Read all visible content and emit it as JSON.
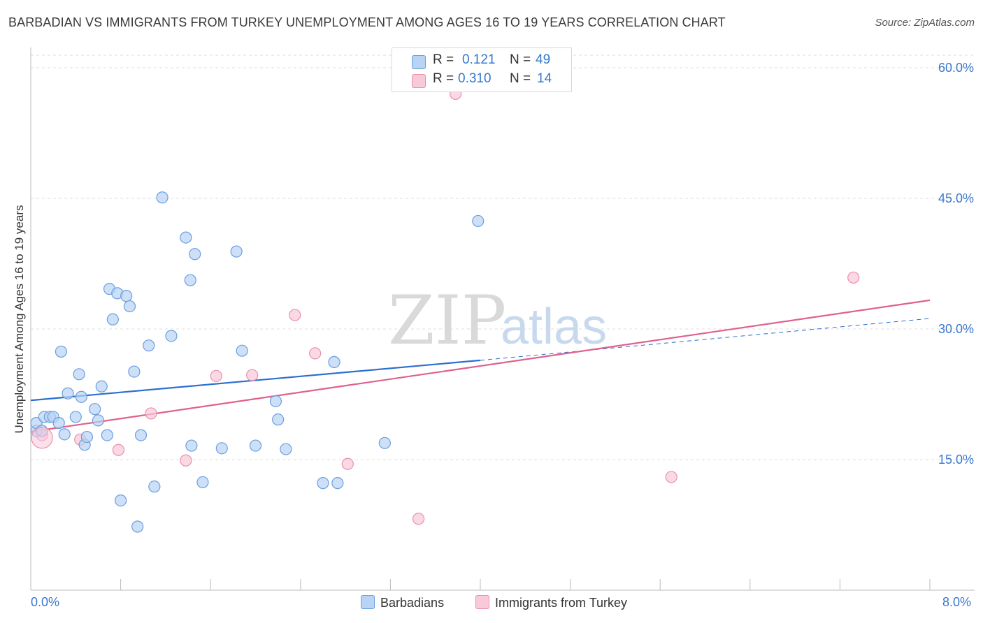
{
  "header": {
    "title": "BARBADIAN VS IMMIGRANTS FROM TURKEY UNEMPLOYMENT AMONG AGES 16 TO 19 YEARS CORRELATION CHART",
    "source": "Source: ZipAtlas.com"
  },
  "watermark": {
    "zip": "ZIP",
    "atlas": "atlas"
  },
  "legend": {
    "rows": [
      {
        "r_label": "R =",
        "r_value": "0.121",
        "n_label": "N =",
        "n_value": "49",
        "color": "#aac8f0",
        "border": "#6a9fe0"
      },
      {
        "r_label": "R =",
        "r_value": "0.310",
        "n_label": "N =",
        "n_value": "14",
        "color": "#f8c4d4",
        "border": "#e890ac"
      }
    ]
  },
  "bottom_legend": {
    "items": [
      {
        "label": "Barbadians",
        "color": "#aac8f0",
        "border": "#6a9fe0"
      },
      {
        "label": "Immigrants from Turkey",
        "color": "#f8c4d4",
        "border": "#e890ac"
      }
    ]
  },
  "chart_data": {
    "type": "scatter",
    "title": "BARBADIAN VS IMMIGRANTS FROM TURKEY UNEMPLOYMENT AMONG AGES 16 TO 19 YEARS CORRELATION CHART",
    "xlabel": "",
    "ylabel": "Unemployment Among Ages 16 to 19 years",
    "xlim": [
      0,
      8
    ],
    "ylim": [
      0,
      60
    ],
    "x_tick_labels": [
      "0.0%",
      "8.0%"
    ],
    "y_ticks": [
      15,
      30,
      45,
      60
    ],
    "y_tick_labels": [
      "15.0%",
      "30.0%",
      "45.0%",
      "60.0%"
    ],
    "grid": true,
    "series": [
      {
        "name": "Barbadians",
        "color": "#6a9fe0",
        "fill": "#b8d3f3",
        "trend": {
          "x0": 0.0,
          "y0": 21.8,
          "x1": 4.0,
          "y1": 26.4,
          "dash_to_x": 8.0,
          "dash_to_y": 31.2,
          "color": "#2b6fd0"
        },
        "points": [
          [
            0.05,
            18.3
          ],
          [
            0.05,
            19.2
          ],
          [
            0.1,
            18.3
          ],
          [
            0.12,
            19.9
          ],
          [
            0.17,
            19.9
          ],
          [
            0.2,
            19.9
          ],
          [
            0.25,
            19.2
          ],
          [
            0.27,
            27.4
          ],
          [
            0.3,
            17.9
          ],
          [
            0.33,
            22.6
          ],
          [
            0.4,
            19.9
          ],
          [
            0.43,
            24.8
          ],
          [
            0.45,
            22.2
          ],
          [
            0.48,
            16.7
          ],
          [
            0.5,
            17.6
          ],
          [
            0.57,
            20.8
          ],
          [
            0.6,
            19.5
          ],
          [
            0.63,
            23.4
          ],
          [
            0.68,
            17.8
          ],
          [
            0.7,
            34.6
          ],
          [
            0.73,
            31.1
          ],
          [
            0.77,
            34.1
          ],
          [
            0.8,
            10.3
          ],
          [
            0.85,
            33.8
          ],
          [
            0.88,
            32.6
          ],
          [
            0.92,
            25.1
          ],
          [
            0.95,
            7.3
          ],
          [
            0.98,
            17.8
          ],
          [
            1.05,
            28.1
          ],
          [
            1.1,
            11.9
          ],
          [
            1.17,
            45.1
          ],
          [
            1.25,
            29.2
          ],
          [
            1.38,
            40.5
          ],
          [
            1.42,
            35.6
          ],
          [
            1.43,
            16.6
          ],
          [
            1.46,
            38.6
          ],
          [
            1.53,
            12.4
          ],
          [
            1.7,
            16.3
          ],
          [
            1.83,
            38.9
          ],
          [
            1.88,
            27.5
          ],
          [
            2.0,
            16.6
          ],
          [
            2.18,
            21.7
          ],
          [
            2.2,
            19.6
          ],
          [
            2.27,
            16.2
          ],
          [
            2.6,
            12.3
          ],
          [
            2.7,
            26.2
          ],
          [
            2.73,
            12.3
          ],
          [
            3.15,
            16.9
          ],
          [
            3.98,
            42.4
          ]
        ]
      },
      {
        "name": "Immigrants from Turkey",
        "color": "#e890ac",
        "fill": "#f9c9d8",
        "trend": {
          "x0": 0.0,
          "y0": 18.2,
          "x1": 8.0,
          "y1": 33.3,
          "color": "#e0608c"
        },
        "points": [
          [
            0.1,
            17.8
          ],
          [
            0.44,
            17.3
          ],
          [
            0.78,
            16.1
          ],
          [
            1.07,
            20.3
          ],
          [
            1.38,
            14.9
          ],
          [
            1.65,
            24.6
          ],
          [
            1.97,
            24.7
          ],
          [
            2.35,
            31.6
          ],
          [
            2.53,
            27.2
          ],
          [
            2.82,
            14.5
          ],
          [
            3.45,
            8.2
          ],
          [
            3.78,
            57.0
          ],
          [
            5.7,
            13.0
          ],
          [
            7.32,
            35.9
          ]
        ]
      }
    ]
  }
}
